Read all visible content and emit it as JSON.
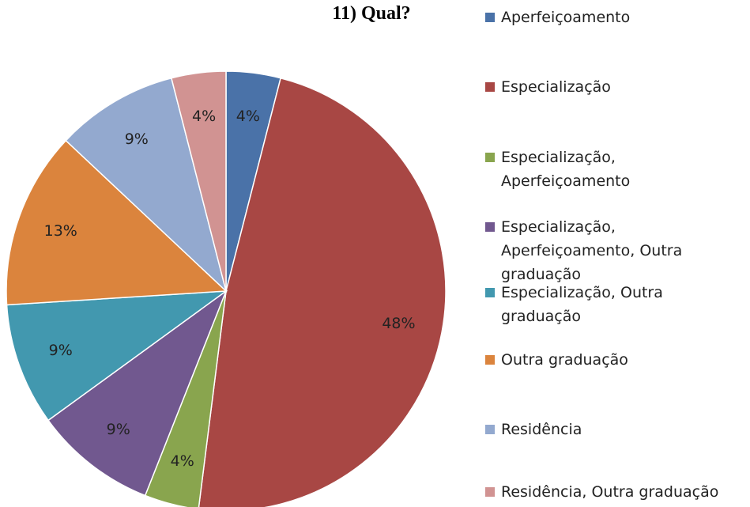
{
  "chart_data": {
    "type": "pie",
    "title": "11) Qual?",
    "categories": [
      "Aperfeiçoamento",
      "Especialização",
      "Especialização, Aperfeiçoamento",
      "Especialização, Aperfeiçoamento, Outra graduação",
      "Especialização, Outra graduação",
      "Outra graduação",
      "Residência",
      "Residência, Outra graduação"
    ],
    "values": [
      4,
      48,
      4,
      9,
      9,
      13,
      9,
      4
    ],
    "value_labels": [
      "4%",
      "48%",
      "4%",
      "9%",
      "9%",
      "13%",
      "9%",
      "4%"
    ],
    "colors": [
      "#4a72a8",
      "#a84744",
      "#89a54e",
      "#71588f",
      "#4298af",
      "#db843d",
      "#93a9cf",
      "#d19392"
    ],
    "legend": "right"
  }
}
